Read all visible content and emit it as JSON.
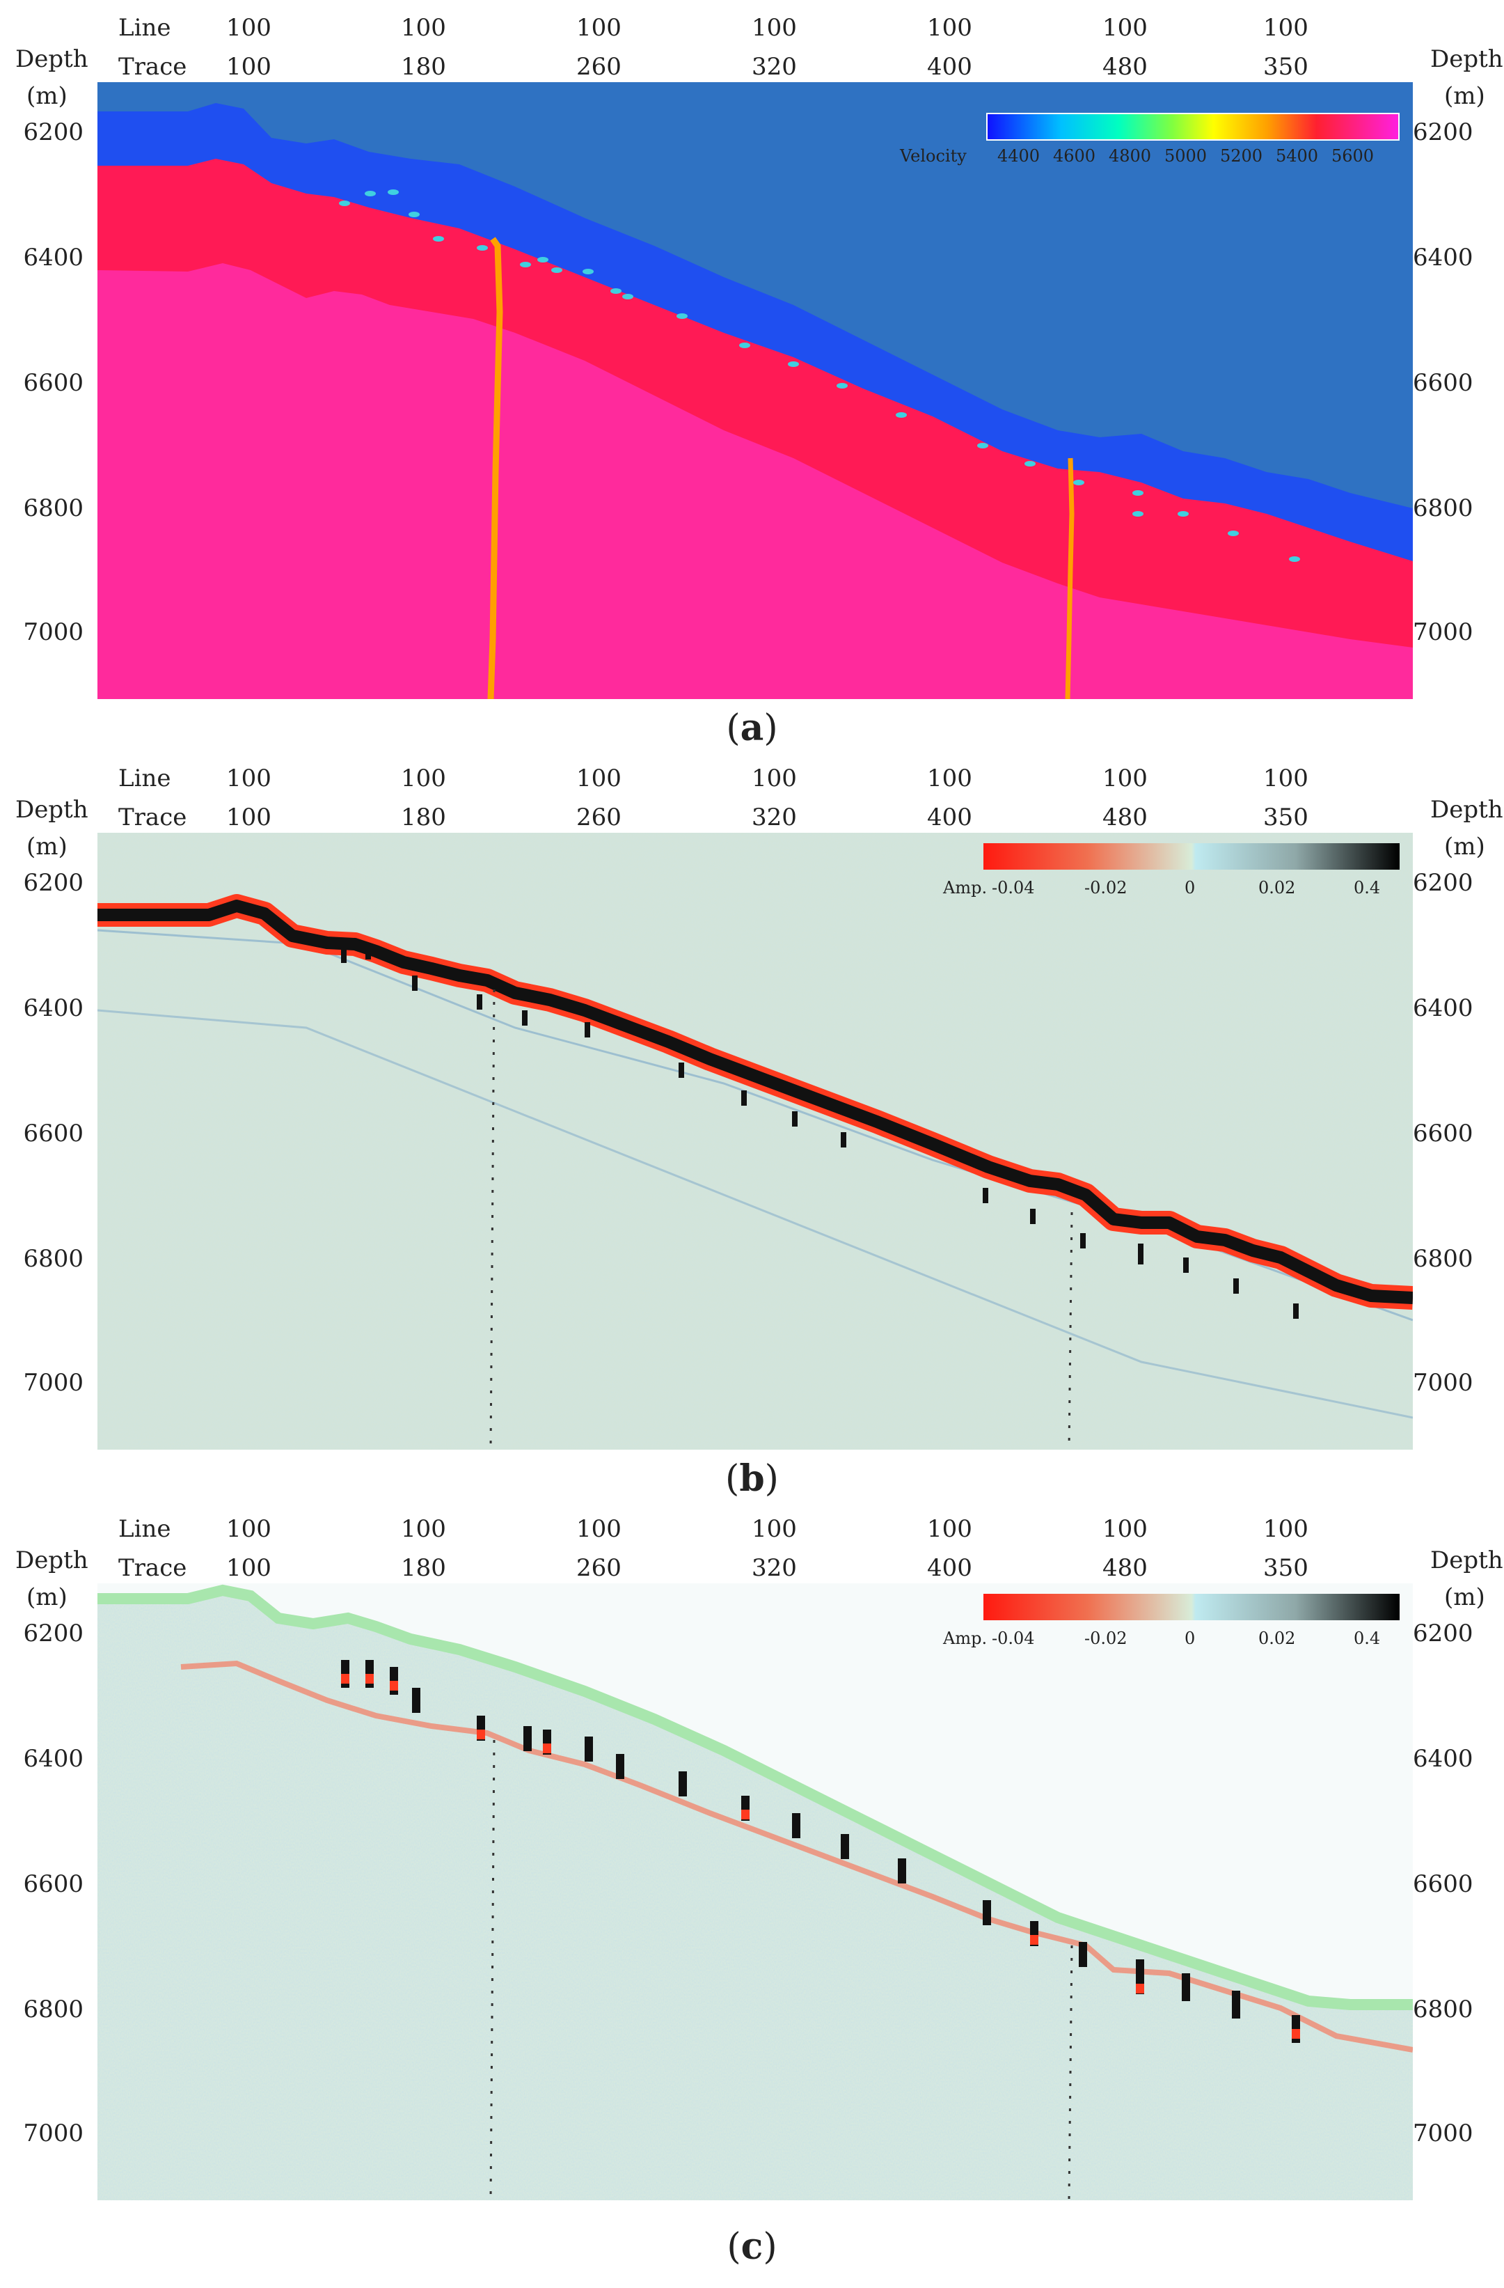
{
  "panels": [
    {
      "id": "a",
      "caption": "a",
      "header": {
        "line_label": "Line",
        "trace_label": "Trace",
        "line_values": [
          "100",
          "100",
          "100",
          "100",
          "100",
          "100",
          "100"
        ],
        "trace_values": [
          "100",
          "180",
          "260",
          "320",
          "400",
          "480",
          "350"
        ]
      },
      "left_axis": {
        "title": "Depth",
        "unit": "(m)",
        "ticks": [
          "6200",
          "6400",
          "6600",
          "6800",
          "7000"
        ]
      },
      "right_axis": {
        "title": "Depth",
        "unit": "(m)",
        "ticks": [
          "6200",
          "6400",
          "6600",
          "6800",
          "7000"
        ]
      },
      "colorbar": {
        "label": "Velocity",
        "ticks": [
          "4400",
          "4600",
          "4800",
          "5000",
          "5200",
          "5400",
          "5600"
        ]
      }
    },
    {
      "id": "b",
      "caption": "b",
      "header": {
        "line_label": "Line",
        "trace_label": "Trace",
        "line_values": [
          "100",
          "100",
          "100",
          "100",
          "100",
          "100",
          "100"
        ],
        "trace_values": [
          "100",
          "180",
          "260",
          "320",
          "400",
          "480",
          "350"
        ]
      },
      "left_axis": {
        "title": "Depth",
        "unit": "(m)",
        "ticks": [
          "6200",
          "6400",
          "6600",
          "6800",
          "7000"
        ]
      },
      "right_axis": {
        "title": "Depth",
        "unit": "(m)",
        "ticks": [
          "6200",
          "6400",
          "6600",
          "6800",
          "7000"
        ]
      },
      "colorbar": {
        "label": "Amp.",
        "ticks": [
          "-0.04",
          "-0.02",
          "0",
          "0.02",
          "0.4"
        ]
      }
    },
    {
      "id": "c",
      "caption": "c",
      "header": {
        "line_label": "Line",
        "trace_label": "Trace",
        "line_values": [
          "100",
          "100",
          "100",
          "100",
          "100",
          "100",
          "100"
        ],
        "trace_values": [
          "100",
          "180",
          "260",
          "320",
          "400",
          "480",
          "350"
        ]
      },
      "left_axis": {
        "title": "Depth",
        "unit": "(m)",
        "ticks": [
          "6200",
          "6400",
          "6600",
          "6800",
          "7000"
        ]
      },
      "right_axis": {
        "title": "Depth",
        "unit": "(m)",
        "ticks": [
          "6200",
          "6400",
          "6600",
          "6800",
          "7000"
        ]
      },
      "colorbar": {
        "label": "Amp.",
        "ticks": [
          "-0.04",
          "-0.02",
          "0",
          "0.02",
          "0.4"
        ]
      }
    }
  ],
  "colors": {
    "water_layer": "#2f72c2",
    "upper_layer": "#1f4ff0",
    "mid_layer": "#ff1a55",
    "deep_layer": "#ff2a9c",
    "fault": "#ffa000",
    "reflector_core": "#111111",
    "reflector_edge": "#ff3b1f",
    "noise_bg": "#cfe0d8",
    "mask_green": "#a8e6ad"
  }
}
